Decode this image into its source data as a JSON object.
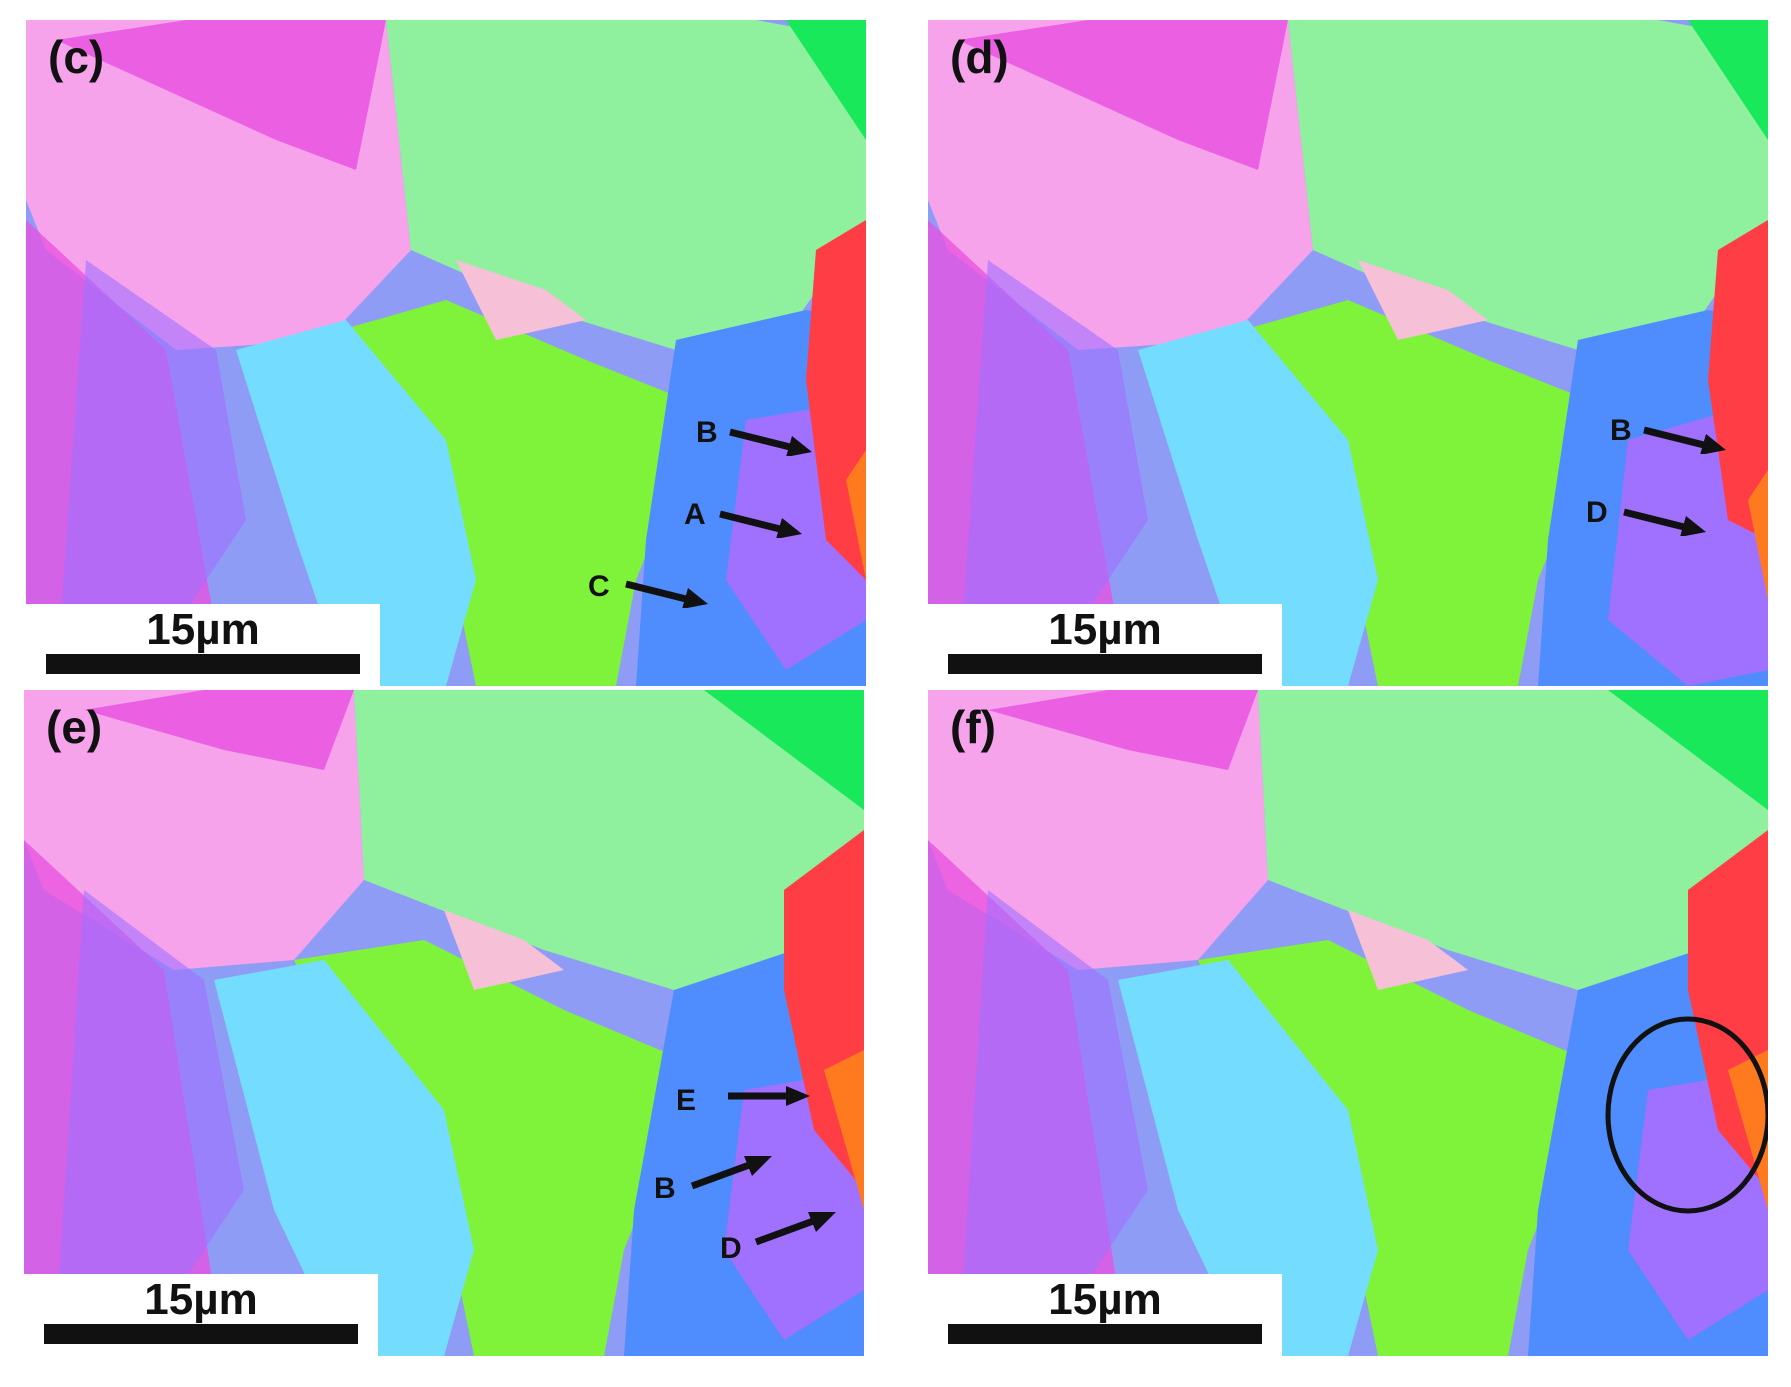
{
  "figure": {
    "panels": [
      {
        "label": "(c)",
        "scale_bar": "15µm",
        "markers": [
          "B",
          "A",
          "C"
        ]
      },
      {
        "label": "(d)",
        "scale_bar": "15µm",
        "markers": [
          "B",
          "D"
        ]
      },
      {
        "label": "(e)",
        "scale_bar": "15µm",
        "markers": [
          "E",
          "B",
          "D"
        ]
      },
      {
        "label": "(f)",
        "scale_bar": "15µm",
        "markers": []
      }
    ]
  },
  "colors": {
    "pink": "#f6a3ec",
    "magenta": "#e94fe0",
    "green": "#8ff09e",
    "lime": "#7ff33a",
    "bright_green": "#19e85a",
    "blue": "#4f8dff",
    "violet": "#a070ff",
    "cyan": "#74ddff",
    "red": "#ff3d45",
    "orange": "#ff7a1f"
  }
}
